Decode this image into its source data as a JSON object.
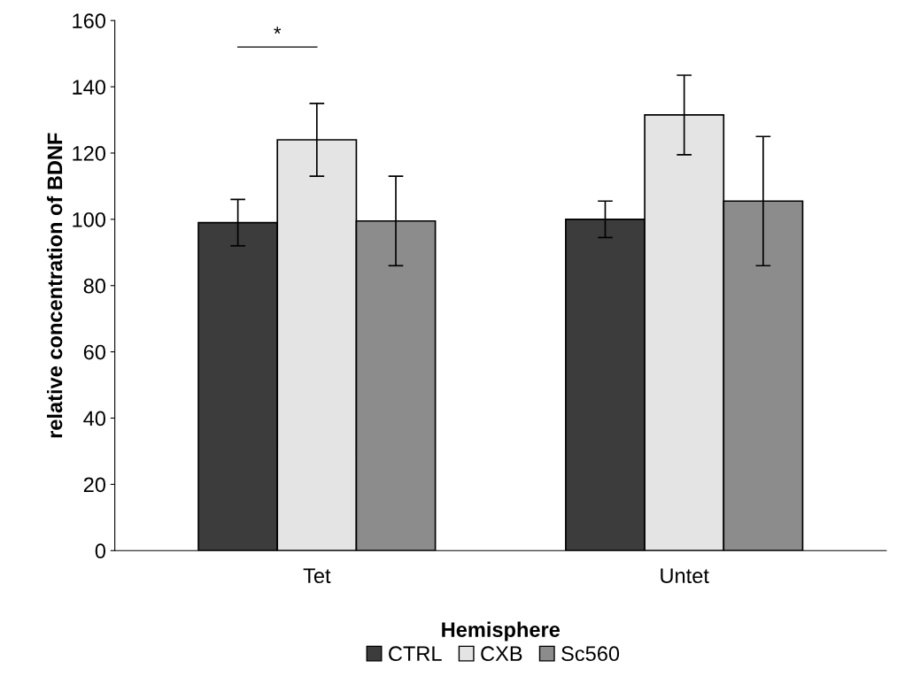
{
  "chart_data": {
    "type": "bar",
    "xlabel": "Hemisphere",
    "ylabel": "relative concentration of BDNF",
    "categories": [
      "Tet",
      "Untet"
    ],
    "series": [
      {
        "name": "CTRL",
        "color": "#3c3c3c",
        "values": [
          99,
          100
        ],
        "errors": [
          7,
          5.5
        ]
      },
      {
        "name": "CXB",
        "color": "#e4e4e4",
        "values": [
          124,
          131.5
        ],
        "errors": [
          11,
          12
        ]
      },
      {
        "name": "Sc560",
        "color": "#8c8c8c",
        "values": [
          99.5,
          105.5
        ],
        "errors": [
          13.5,
          19.5
        ]
      }
    ],
    "ylim": [
      0,
      160
    ],
    "yticks": [
      0,
      20,
      40,
      60,
      80,
      100,
      120,
      140,
      160
    ],
    "annotations": [
      "*"
    ],
    "legend": "bottom",
    "grid": false
  }
}
